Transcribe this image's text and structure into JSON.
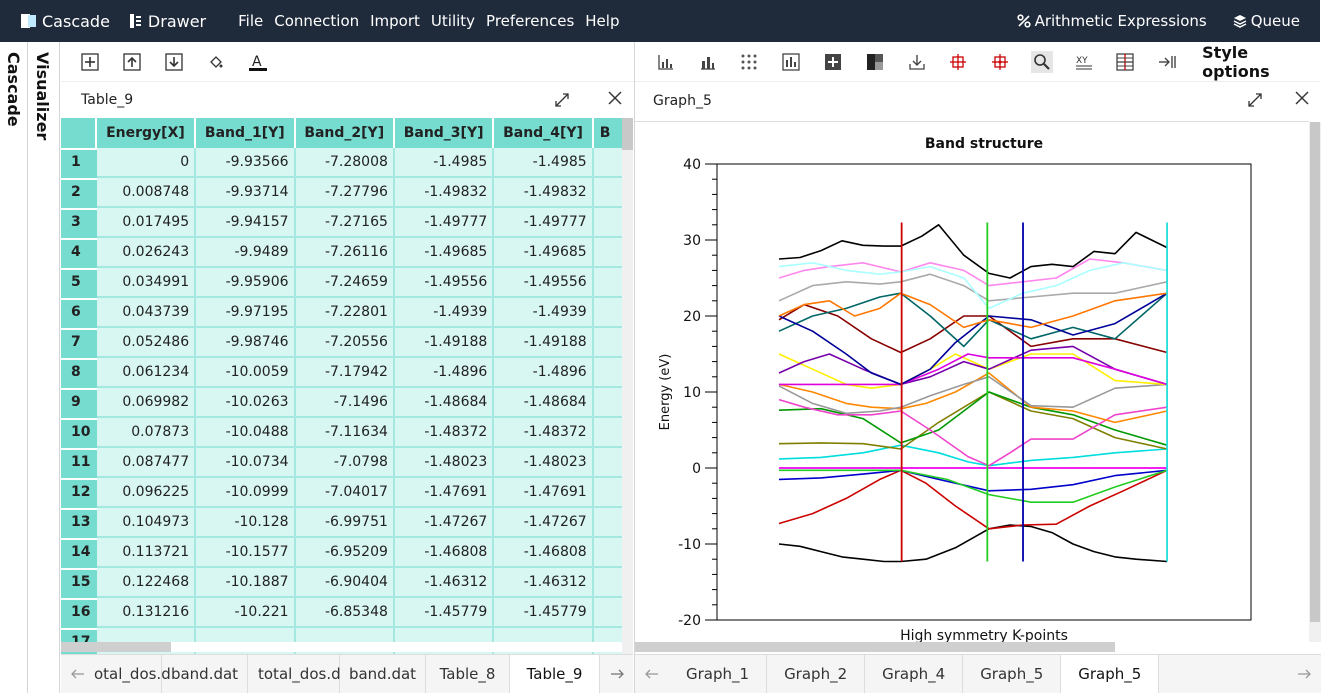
{
  "topbar": {
    "brand1": "Cascade",
    "brand2": "Drawer",
    "menus": [
      "File",
      "Connection",
      "Import",
      "Utility",
      "Preferences",
      "Help"
    ],
    "arith": "Arithmetic Expressions",
    "queue": "Queue"
  },
  "side": {
    "cascade": "Cascade",
    "visualizer": "Visualizer"
  },
  "left": {
    "title": "Table_9",
    "columns": [
      "Energy[X]",
      "Band_1[Y]",
      "Band_2[Y]",
      "Band_3[Y]",
      "Band_4[Y]",
      "B"
    ],
    "rows": [
      [
        "1",
        "0",
        "-9.93566",
        "-7.28008",
        "-1.4985",
        "-1.4985"
      ],
      [
        "2",
        "0.008748",
        "-9.93714",
        "-7.27796",
        "-1.49832",
        "-1.49832"
      ],
      [
        "3",
        "0.017495",
        "-9.94157",
        "-7.27165",
        "-1.49777",
        "-1.49777"
      ],
      [
        "4",
        "0.026243",
        "-9.9489",
        "-7.26116",
        "-1.49685",
        "-1.49685"
      ],
      [
        "5",
        "0.034991",
        "-9.95906",
        "-7.24659",
        "-1.49556",
        "-1.49556"
      ],
      [
        "6",
        "0.043739",
        "-9.97195",
        "-7.22801",
        "-1.4939",
        "-1.4939"
      ],
      [
        "7",
        "0.052486",
        "-9.98746",
        "-7.20556",
        "-1.49188",
        "-1.49188"
      ],
      [
        "8",
        "0.061234",
        "-10.0059",
        "-7.17942",
        "-1.4896",
        "-1.4896"
      ],
      [
        "9",
        "0.069982",
        "-10.0263",
        "-7.1496",
        "-1.48684",
        "-1.48684"
      ],
      [
        "10",
        "0.07873",
        "-10.0488",
        "-7.11634",
        "-1.48372",
        "-1.48372"
      ],
      [
        "11",
        "0.087477",
        "-10.0734",
        "-7.0798",
        "-1.48023",
        "-1.48023"
      ],
      [
        "12",
        "0.096225",
        "-10.0999",
        "-7.04017",
        "-1.47691",
        "-1.47691"
      ],
      [
        "13",
        "0.104973",
        "-10.128",
        "-6.99751",
        "-1.47267",
        "-1.47267"
      ],
      [
        "14",
        "0.113721",
        "-10.1577",
        "-6.95209",
        "-1.46808",
        "-1.46808"
      ],
      [
        "15",
        "0.122468",
        "-10.1887",
        "-6.90404",
        "-1.46312",
        "-1.46312"
      ],
      [
        "16",
        "0.131216",
        "-10.221",
        "-6.85348",
        "-1.45779",
        "-1.45779"
      ],
      [
        "17",
        "",
        "",
        "",
        "",
        ""
      ]
    ],
    "tabs": [
      "otal_dos.d",
      "band.dat",
      "total_dos.d",
      "band.dat",
      "Table_8",
      "Table_9"
    ],
    "active_tab": 5
  },
  "right": {
    "title": "Graph_5",
    "style_options": "Style options",
    "tabs": [
      "Graph_1",
      "Graph_2",
      "Graph_4",
      "Graph_5",
      "Graph_5"
    ],
    "active_tab": 4
  },
  "icons": {
    "left_toolbar": [
      "table-add-icon",
      "table-up-icon",
      "table-down-icon",
      "fill-color-icon",
      "text-color-icon"
    ],
    "right_toolbar": [
      "bar-chart-icon",
      "bar-chart-2-icon",
      "scatter-icon",
      "histogram-icon",
      "add-icon",
      "contrast-icon",
      "download-icon",
      "crosshair-icon",
      "crosshair-2-icon",
      "zoom-icon",
      "swap-xy-icon",
      "grid-icon",
      "export-icon"
    ]
  },
  "chart_data": {
    "type": "line",
    "title": "Band structure",
    "xlabel": "High symmetry K-points",
    "ylabel": "Energy (eV)",
    "xlim": [
      0,
      1
    ],
    "ylim": [
      -20,
      40
    ],
    "yticks": [
      -20,
      -10,
      0,
      10,
      20,
      30,
      40
    ],
    "grid": false,
    "legend": "none",
    "vlines": [
      {
        "x": 0.292,
        "color": "#cc0000"
      },
      {
        "x": 0.496,
        "color": "#22cc22"
      },
      {
        "x": 0.581,
        "color": "#0000aa"
      },
      {
        "x": 0.924,
        "color": "#22dddd"
      }
    ],
    "hlines": [
      {
        "y": 0,
        "color": "#ee00ee"
      }
    ],
    "series": [
      {
        "color": "#000000",
        "x": [
          0,
          0.05,
          0.1,
          0.15,
          0.2,
          0.25,
          0.29,
          0.35,
          0.42,
          0.5,
          0.55,
          0.6,
          0.65,
          0.7,
          0.75,
          0.8,
          0.85,
          0.924
        ],
        "y": [
          -10,
          -10.3,
          -11,
          -11.7,
          -12,
          -12.3,
          -12.3,
          -12,
          -10.5,
          -8,
          -7.5,
          -7.7,
          -8.5,
          -10,
          -11,
          -11.7,
          -12,
          -12.3
        ]
      },
      {
        "color": "#cc0000",
        "x": [
          0,
          0.08,
          0.16,
          0.24,
          0.29,
          0.35,
          0.42,
          0.5,
          0.58,
          0.66,
          0.74,
          0.82,
          0.924
        ],
        "y": [
          -7.3,
          -6,
          -4,
          -1.5,
          -0.3,
          -2,
          -5,
          -8,
          -7.5,
          -7.4,
          -5,
          -3,
          -0.3
        ]
      },
      {
        "color": "#0000cc",
        "x": [
          0,
          0.1,
          0.2,
          0.29,
          0.38,
          0.5,
          0.6,
          0.7,
          0.8,
          0.924
        ],
        "y": [
          -1.5,
          -1.3,
          -0.8,
          -0.3,
          -1.5,
          -3,
          -2.8,
          -2.2,
          -1,
          -0.3
        ]
      },
      {
        "color": "#22cc22",
        "x": [
          0,
          0.15,
          0.29,
          0.4,
          0.5,
          0.6,
          0.7,
          0.8,
          0.924
        ],
        "y": [
          -0.3,
          -0.3,
          -0.3,
          -1.5,
          -3.5,
          -4.5,
          -4.5,
          -2.5,
          -0.3
        ]
      },
      {
        "color": "#00dddd",
        "x": [
          0,
          0.1,
          0.2,
          0.29,
          0.38,
          0.45,
          0.5,
          0.6,
          0.7,
          0.8,
          0.924
        ],
        "y": [
          1.2,
          1.4,
          2,
          3,
          2,
          0.8,
          0.3,
          1,
          1.4,
          2,
          2.5
        ]
      },
      {
        "color": "#808000",
        "x": [
          0,
          0.1,
          0.2,
          0.29,
          0.38,
          0.5,
          0.6,
          0.7,
          0.8,
          0.924
        ],
        "y": [
          3.2,
          3.3,
          3.2,
          2.5,
          6,
          10,
          7.5,
          6.5,
          4,
          2.5
        ]
      },
      {
        "color": "#009900",
        "x": [
          0,
          0.1,
          0.2,
          0.29,
          0.38,
          0.5,
          0.6,
          0.7,
          0.8,
          0.924
        ],
        "y": [
          7.6,
          7.8,
          6.5,
          3.3,
          5,
          10,
          8,
          7,
          5,
          3
        ]
      },
      {
        "color": "#ee44cc",
        "x": [
          0,
          0.06,
          0.14,
          0.22,
          0.29,
          0.36,
          0.45,
          0.5,
          0.55,
          0.6,
          0.7,
          0.8,
          0.924
        ],
        "y": [
          9,
          8,
          7,
          7,
          7.5,
          5,
          1.5,
          0.3,
          2,
          3.8,
          3.8,
          7,
          8
        ]
      },
      {
        "color": "#ff8800",
        "x": [
          0,
          0.08,
          0.16,
          0.22,
          0.29,
          0.35,
          0.42,
          0.5,
          0.6,
          0.7,
          0.8,
          0.924
        ],
        "y": [
          11,
          10,
          8.5,
          8,
          7.8,
          8.5,
          10,
          12.5,
          8,
          7.5,
          6,
          7.5
        ]
      },
      {
        "color": "#999999",
        "x": [
          0,
          0.08,
          0.16,
          0.24,
          0.29,
          0.36,
          0.44,
          0.5,
          0.6,
          0.7,
          0.8,
          0.924
        ],
        "y": [
          10.8,
          8.5,
          7.2,
          7.5,
          8,
          9.5,
          11,
          12,
          8.2,
          8,
          10.5,
          11
        ]
      },
      {
        "color": "#ffee00",
        "x": [
          0,
          0.08,
          0.16,
          0.22,
          0.29,
          0.36,
          0.42,
          0.5,
          0.6,
          0.7,
          0.8,
          0.924
        ],
        "y": [
          15,
          13,
          11,
          10.5,
          11,
          13,
          15,
          13,
          15,
          15,
          11.5,
          11
        ]
      },
      {
        "color": "#7700aa",
        "x": [
          0,
          0.06,
          0.12,
          0.2,
          0.29,
          0.36,
          0.44,
          0.5,
          0.6,
          0.7,
          0.8,
          0.924
        ],
        "y": [
          12.5,
          14,
          15,
          13,
          11,
          12,
          14,
          13,
          15.5,
          16,
          13,
          11
        ]
      },
      {
        "color": "#dd00dd",
        "x": [
          0,
          0.1,
          0.2,
          0.29,
          0.38,
          0.45,
          0.5,
          0.6,
          0.7,
          0.8,
          0.924
        ],
        "y": [
          11,
          11,
          11,
          11,
          13,
          15,
          14.5,
          14.5,
          14.5,
          13,
          11
        ]
      },
      {
        "color": "#880000",
        "x": [
          0,
          0.06,
          0.14,
          0.22,
          0.29,
          0.36,
          0.44,
          0.5,
          0.6,
          0.7,
          0.8,
          0.924
        ],
        "y": [
          19.5,
          21.5,
          20,
          17,
          15.2,
          17,
          20,
          20,
          16,
          17,
          17,
          15.2
        ]
      },
      {
        "color": "#006666",
        "x": [
          0,
          0.08,
          0.16,
          0.24,
          0.29,
          0.36,
          0.44,
          0.5,
          0.6,
          0.7,
          0.8,
          0.924
        ],
        "y": [
          18,
          20,
          21,
          22.5,
          23,
          20,
          16,
          19.5,
          17,
          18.5,
          17,
          23
        ]
      },
      {
        "color": "#000099",
        "x": [
          0,
          0.08,
          0.16,
          0.22,
          0.29,
          0.36,
          0.42,
          0.5,
          0.6,
          0.7,
          0.8,
          0.924
        ],
        "y": [
          20,
          18,
          15,
          12.5,
          11,
          13,
          16.5,
          20,
          19.5,
          17.5,
          19,
          23
        ]
      },
      {
        "color": "#ff7700",
        "x": [
          0,
          0.06,
          0.12,
          0.18,
          0.24,
          0.29,
          0.36,
          0.44,
          0.5,
          0.6,
          0.7,
          0.8,
          0.924
        ],
        "y": [
          20,
          21.5,
          22,
          20,
          21,
          23,
          21.5,
          18.5,
          19.5,
          18.5,
          20,
          22,
          23
        ]
      },
      {
        "color": "#aaaaaa",
        "x": [
          0,
          0.08,
          0.16,
          0.24,
          0.29,
          0.36,
          0.44,
          0.5,
          0.6,
          0.7,
          0.8,
          0.924
        ],
        "y": [
          22,
          24,
          24.5,
          24.2,
          24.5,
          25.5,
          24,
          22,
          22.5,
          23,
          23,
          24.5
        ]
      },
      {
        "color": "#ff88ee",
        "x": [
          0,
          0.06,
          0.12,
          0.2,
          0.29,
          0.36,
          0.44,
          0.5,
          0.58,
          0.66,
          0.74,
          0.82,
          0.924
        ],
        "y": [
          25,
          26,
          26.5,
          27,
          25.8,
          27,
          26,
          24,
          24.5,
          25,
          27.5,
          27,
          26
        ]
      },
      {
        "color": "#aaffff",
        "x": [
          0,
          0.08,
          0.16,
          0.24,
          0.29,
          0.36,
          0.44,
          0.5,
          0.58,
          0.66,
          0.74,
          0.82,
          0.924
        ],
        "y": [
          26.5,
          27,
          26,
          25.5,
          25.8,
          26.5,
          25,
          21,
          23,
          24,
          26,
          27,
          26
        ]
      },
      {
        "color": "#000000",
        "x": [
          0,
          0.05,
          0.1,
          0.15,
          0.2,
          0.25,
          0.29,
          0.34,
          0.38,
          0.44,
          0.5,
          0.55,
          0.6,
          0.65,
          0.7,
          0.75,
          0.8,
          0.85,
          0.924
        ],
        "y": [
          27.5,
          27.7,
          28.6,
          29.9,
          29.3,
          29.2,
          29.2,
          30.5,
          32,
          28,
          25.6,
          25,
          26.5,
          26.8,
          26.5,
          28.5,
          28.2,
          31,
          29
        ]
      }
    ]
  }
}
